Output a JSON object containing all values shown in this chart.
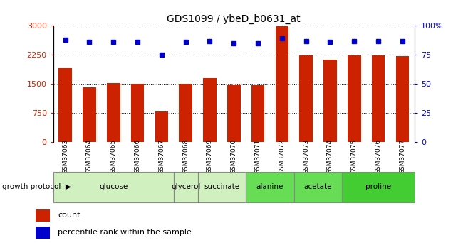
{
  "title": "GDS1099 / ybeD_b0631_at",
  "samples": [
    "GSM37063",
    "GSM37064",
    "GSM37065",
    "GSM37066",
    "GSM37067",
    "GSM37068",
    "GSM37069",
    "GSM37070",
    "GSM37071",
    "GSM37072",
    "GSM37073",
    "GSM37074",
    "GSM37075",
    "GSM37076",
    "GSM37077"
  ],
  "counts": [
    1900,
    1420,
    1530,
    1510,
    780,
    1510,
    1650,
    1490,
    1460,
    2980,
    2240,
    2120,
    2240,
    2240,
    2220
  ],
  "percentile_pct": [
    88,
    86,
    86,
    86,
    75,
    86,
    87,
    85,
    85,
    89,
    87,
    86,
    87,
    87,
    87
  ],
  "ylim_left": [
    0,
    3000
  ],
  "ylim_right": [
    0,
    100
  ],
  "yticks_left": [
    0,
    750,
    1500,
    2250,
    3000
  ],
  "yticks_right": [
    0,
    25,
    50,
    75,
    100
  ],
  "bar_color": "#cc2200",
  "dot_color": "#0000cc",
  "bg_color": "#ffffff",
  "plot_bg": "#ffffff",
  "sample_bg": "#c8c8c8",
  "groups": [
    {
      "label": "glucose",
      "start": 0,
      "end": 4,
      "color": "#d0f0c0"
    },
    {
      "label": "glycerol",
      "start": 5,
      "end": 5,
      "color": "#d0f0c0"
    },
    {
      "label": "succinate",
      "start": 6,
      "end": 7,
      "color": "#d0f0c0"
    },
    {
      "label": "alanine",
      "start": 8,
      "end": 9,
      "color": "#66dd55"
    },
    {
      "label": "acetate",
      "start": 10,
      "end": 11,
      "color": "#66dd55"
    },
    {
      "label": "proline",
      "start": 12,
      "end": 14,
      "color": "#44cc33"
    }
  ],
  "legend_count_color": "#cc2200",
  "legend_pct_color": "#0000cc"
}
